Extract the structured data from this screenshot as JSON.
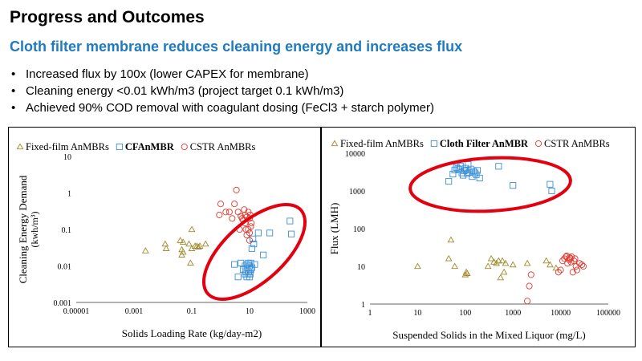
{
  "slide": {
    "title": "Progress and Outcomes",
    "subtitle": "Cloth filter membrane reduces cleaning energy and increases flux",
    "bullets": [
      "Increased flux by 100x (lower CAPEX for membrane)",
      "Cleaning energy <0.01 kWh/m3 (project target 0.1 kWh/m3)",
      "Achieved 90% COD removal with coagulant dosing (FeCl3 + starch polymer)"
    ]
  },
  "colors": {
    "title": "#000000",
    "subtitle": "#1f7bbf",
    "fixed_film": "#a08a2c",
    "cloth_filter": "#3b8fd6",
    "cstr": "#e0392e",
    "highlight": "#e3000f"
  },
  "chart_data": [
    {
      "type": "scatter",
      "title": "",
      "xlabel": "Solids Loading Rate (kg/day-m2)",
      "ylabel": "Cleaning Energy Demand",
      "ylabel_units": "(kwh/m³)",
      "xscale": "log",
      "yscale": "log",
      "xlim": [
        1e-05,
        1000
      ],
      "ylim": [
        0.001,
        10
      ],
      "xticks": [
        1e-05,
        0.001,
        0.1,
        10,
        1000
      ],
      "xtick_labels": [
        "0.00001",
        "0.001",
        "0.1",
        "10",
        "1000"
      ],
      "yticks": [
        0.001,
        0.01,
        0.1,
        1,
        10
      ],
      "ytick_labels": [
        "0.001",
        "0.01",
        "0.1",
        "1",
        "10"
      ],
      "legend": [
        "Fixed-film AnMBRs",
        "CFAnMBR",
        "CSTR AnMBRs"
      ],
      "legend_position": "top",
      "series": [
        {
          "name": "Fixed-film AnMBRs",
          "marker": "triangle",
          "points": [
            [
              0.0025,
              0.026
            ],
            [
              0.012,
              0.04
            ],
            [
              0.013,
              0.03
            ],
            [
              0.04,
              0.05
            ],
            [
              0.045,
              0.028
            ],
            [
              0.045,
              0.02
            ],
            [
              0.05,
              0.024
            ],
            [
              0.05,
              0.045
            ],
            [
              0.08,
              0.04
            ],
            [
              0.09,
              0.012
            ],
            [
              0.1,
              0.1
            ],
            [
              0.1,
              0.03
            ],
            [
              0.13,
              0.035
            ],
            [
              0.15,
              0.035
            ],
            [
              0.17,
              0.033
            ],
            [
              0.19,
              0.035
            ],
            [
              0.3,
              0.04
            ]
          ]
        },
        {
          "name": "CFAnMBR",
          "marker": "square",
          "points": [
            [
              3,
              0.011
            ],
            [
              4,
              0.005
            ],
            [
              5,
              0.012
            ],
            [
              6,
              0.008
            ],
            [
              7,
              0.01
            ],
            [
              7,
              0.006
            ],
            [
              7.5,
              0.007
            ],
            [
              8,
              0.011
            ],
            [
              8,
              0.005
            ],
            [
              8.5,
              0.009
            ],
            [
              9,
              0.012
            ],
            [
              9,
              0.006
            ],
            [
              9.5,
              0.007
            ],
            [
              10,
              0.01
            ],
            [
              10,
              0.005
            ],
            [
              10.5,
              0.006
            ],
            [
              11,
              0.008
            ],
            [
              11,
              0.012
            ],
            [
              12,
              0.009
            ],
            [
              12,
              0.03
            ],
            [
              13,
              0.055
            ],
            [
              14,
              0.04
            ],
            [
              15,
              0.011
            ],
            [
              20,
              0.08
            ],
            [
              30,
              0.02
            ],
            [
              50,
              0.08
            ],
            [
              250,
              0.17
            ],
            [
              280,
              0.075
            ]
          ]
        },
        {
          "name": "CSTR AnMBRs",
          "marker": "circle",
          "points": [
            [
              0.9,
              0.25
            ],
            [
              1,
              0.5
            ],
            [
              1.5,
              0.3
            ],
            [
              2,
              0.3
            ],
            [
              2.5,
              0.2
            ],
            [
              3,
              0.5
            ],
            [
              3.5,
              1.2
            ],
            [
              4,
              0.3
            ],
            [
              4.5,
              0.1
            ],
            [
              5,
              0.23
            ],
            [
              5.5,
              0.2
            ],
            [
              6,
              0.18
            ],
            [
              6.5,
              0.35
            ],
            [
              7,
              0.15
            ],
            [
              7,
              0.25
            ],
            [
              7.5,
              0.1
            ],
            [
              8,
              0.22
            ],
            [
              8,
              0.07
            ],
            [
              9,
              0.3
            ],
            [
              9,
              0.1
            ],
            [
              10,
              0.08
            ],
            [
              10,
              0.05
            ],
            [
              10,
              0.2
            ],
            [
              10.5,
              0.25
            ],
            [
              11,
              0.12
            ],
            [
              11.5,
              0.15
            ]
          ]
        }
      ]
    },
    {
      "type": "scatter",
      "title": "",
      "xlabel": "Suspended Solids in the Mixed Liquor (mg/L)",
      "ylabel": "Flux (LMH)",
      "xscale": "log",
      "yscale": "log",
      "xlim": [
        1,
        100000
      ],
      "ylim": [
        1,
        10000
      ],
      "xticks": [
        1,
        10,
        100,
        1000,
        10000,
        100000
      ],
      "xtick_labels": [
        "1",
        "10",
        "100",
        "1000",
        "10000",
        "100000"
      ],
      "yticks": [
        1,
        10,
        100,
        1000,
        10000
      ],
      "ytick_labels": [
        "1",
        "10",
        "100",
        "1000",
        "10000"
      ],
      "legend": [
        "Fixed-film AnMBRs",
        "Cloth Filter AnMBR",
        "CSTR AnMBRs"
      ],
      "legend_position": "top",
      "series": [
        {
          "name": "Fixed-film AnMBRs",
          "marker": "triangle",
          "points": [
            [
              10,
              10
            ],
            [
              45,
              16
            ],
            [
              50,
              50
            ],
            [
              60,
              10
            ],
            [
              100,
              6
            ],
            [
              105,
              7
            ],
            [
              110,
              6.5
            ],
            [
              300,
              10
            ],
            [
              350,
              16
            ],
            [
              400,
              13
            ],
            [
              450,
              12
            ],
            [
              500,
              14
            ],
            [
              550,
              5
            ],
            [
              600,
              14
            ],
            [
              650,
              7
            ],
            [
              700,
              12
            ],
            [
              1000,
              11
            ],
            [
              2000,
              12
            ],
            [
              5000,
              14
            ],
            [
              6000,
              11
            ],
            [
              8000,
              9
            ]
          ]
        },
        {
          "name": "Cloth Filter AnMBR",
          "marker": "square",
          "points": [
            [
              45,
              1800
            ],
            [
              55,
              2800
            ],
            [
              60,
              3600
            ],
            [
              65,
              4200
            ],
            [
              70,
              3900
            ],
            [
              75,
              3700
            ],
            [
              80,
              4500
            ],
            [
              85,
              3000
            ],
            [
              90,
              2600
            ],
            [
              95,
              3400
            ],
            [
              100,
              4000
            ],
            [
              105,
              3600
            ],
            [
              110,
              2900
            ],
            [
              115,
              5000
            ],
            [
              120,
              3100
            ],
            [
              130,
              3800
            ],
            [
              140,
              2400
            ],
            [
              150,
              3300
            ],
            [
              160,
              3000
            ],
            [
              170,
              2700
            ],
            [
              180,
              3500
            ],
            [
              200,
              2200
            ],
            [
              500,
              4500
            ],
            [
              1000,
              1400
            ],
            [
              6000,
              1500
            ],
            [
              6500,
              1000
            ]
          ]
        },
        {
          "name": "CSTR AnMBRs",
          "marker": "circle",
          "points": [
            [
              2000,
              1.2
            ],
            [
              2200,
              3
            ],
            [
              2400,
              6
            ],
            [
              9000,
              7
            ],
            [
              10000,
              8
            ],
            [
              11000,
              14
            ],
            [
              12000,
              16
            ],
            [
              13000,
              18
            ],
            [
              13500,
              19
            ],
            [
              14000,
              12
            ],
            [
              15000,
              15
            ],
            [
              15500,
              17
            ],
            [
              16000,
              16
            ],
            [
              16500,
              13
            ],
            [
              17000,
              18
            ],
            [
              18000,
              7
            ],
            [
              19000,
              14
            ],
            [
              20000,
              16
            ],
            [
              21000,
              10
            ],
            [
              22000,
              8
            ],
            [
              25000,
              12
            ],
            [
              28000,
              11
            ],
            [
              30000,
              10
            ]
          ]
        }
      ]
    }
  ]
}
